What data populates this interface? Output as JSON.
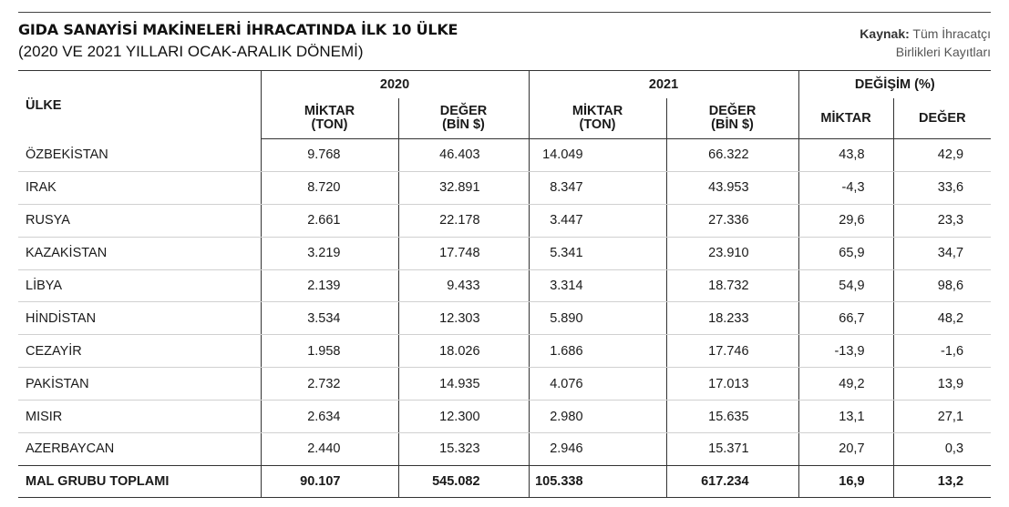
{
  "title": "GIDA SANAYİSİ MAKİNELERİ İHRACATINDA İLK 10 ÜLKE",
  "subtitle": "(2020 VE 2021 YILLARI OCAK-ARALIK DÖNEMİ)",
  "source": {
    "label": "Kaynak:",
    "line1": "Tüm İhracatçı",
    "line2": "Birlikleri Kayıtları"
  },
  "table": {
    "country_header": "ÜLKE",
    "groups": [
      "2020",
      "2021",
      "DEĞİŞİM (%)"
    ],
    "sub_headers": {
      "miktar_ton_l1": "MİKTAR",
      "miktar_ton_l2": "(TON)",
      "deger_bin_l1": "DEĞER",
      "deger_bin_l2": "(BİN $)",
      "miktar": "MİKTAR",
      "deger": "DEĞER"
    },
    "rows": [
      [
        "ÖZBEKİSTAN",
        "9.768",
        "46.403",
        "14.049",
        "66.322",
        "43,8",
        "42,9"
      ],
      [
        "IRAK",
        "8.720",
        "32.891",
        "8.347",
        "43.953",
        "-4,3",
        "33,6"
      ],
      [
        "RUSYA",
        "2.661",
        "22.178",
        "3.447",
        "27.336",
        "29,6",
        "23,3"
      ],
      [
        "KAZAKİSTAN",
        "3.219",
        "17.748",
        "5.341",
        "23.910",
        "65,9",
        "34,7"
      ],
      [
        "LİBYA",
        "2.139",
        "9.433",
        "3.314",
        "18.732",
        "54,9",
        "98,6"
      ],
      [
        "HİNDİSTAN",
        "3.534",
        "12.303",
        "5.890",
        "18.233",
        "66,7",
        "48,2"
      ],
      [
        "CEZAYİR",
        "1.958",
        "18.026",
        "1.686",
        "17.746",
        "-13,9",
        "-1,6"
      ],
      [
        "PAKİSTAN",
        "2.732",
        "14.935",
        "4.076",
        "17.013",
        "49,2",
        "13,9"
      ],
      [
        "MISIR",
        "2.634",
        "12.300",
        "2.980",
        "15.635",
        "13,1",
        "27,1"
      ],
      [
        "AZERBAYCAN",
        "2.440",
        "15.323",
        "2.946",
        "15.371",
        "20,7",
        "0,3"
      ]
    ],
    "total": [
      "MAL GRUBU TOPLAMI",
      "90.107",
      "545.082",
      "105.338",
      "617.234",
      "16,9",
      "13,2"
    ]
  }
}
